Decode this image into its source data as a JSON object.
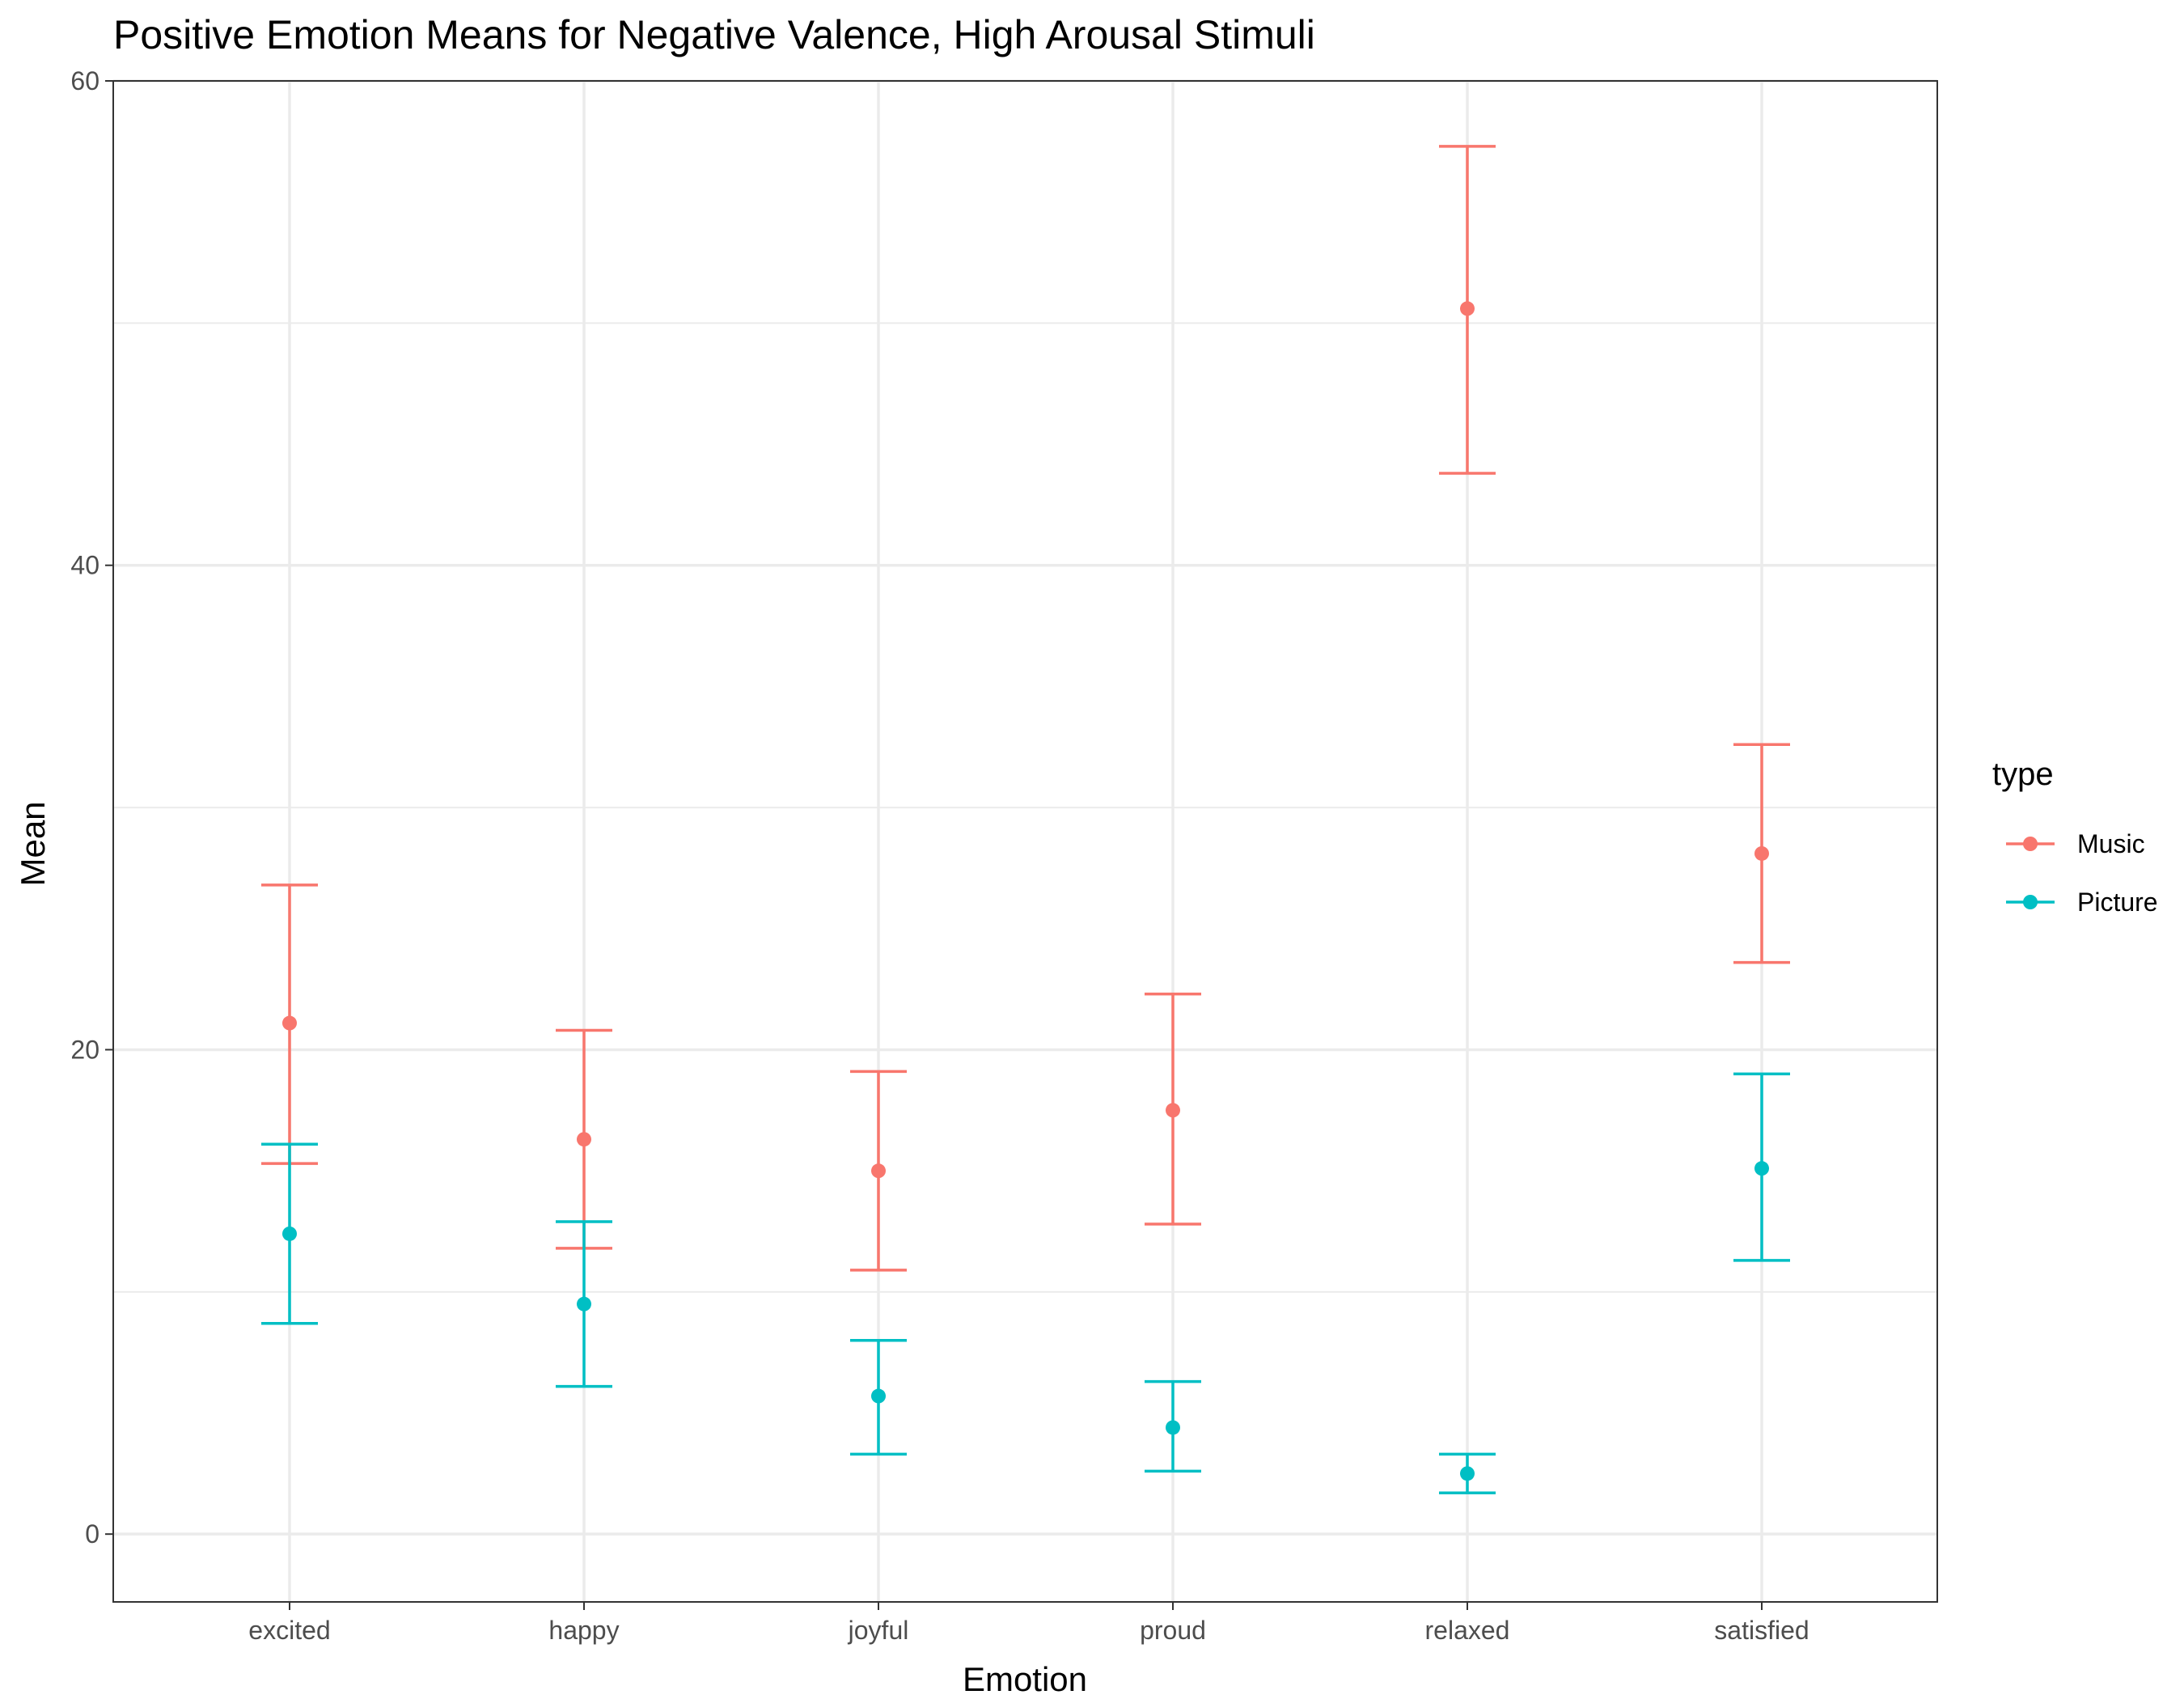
{
  "chart_data": {
    "type": "errorbar",
    "title": "Positive Emotion Means for Negative Valence, High Arousal Stimuli",
    "xlabel": "Emotion",
    "ylabel": "Mean",
    "categories": [
      "excited",
      "happy",
      "joyful",
      "proud",
      "relaxed",
      "satisfied"
    ],
    "ylim": [
      -2.8,
      60
    ],
    "yticks": [
      0,
      20,
      40,
      60
    ],
    "grid": true,
    "legend": {
      "title": "type",
      "placement": "right"
    },
    "series": [
      {
        "name": "Music",
        "color": "#F8766D",
        "mean": [
          21.1,
          16.3,
          15.0,
          17.5,
          50.6,
          28.1
        ],
        "lower": [
          15.3,
          11.8,
          10.9,
          12.8,
          43.8,
          23.6
        ],
        "upper": [
          26.8,
          20.8,
          19.1,
          22.3,
          57.3,
          32.6
        ]
      },
      {
        "name": "Picture",
        "color": "#00BFC4",
        "mean": [
          12.4,
          9.5,
          5.7,
          4.4,
          2.5,
          15.1
        ],
        "lower": [
          8.7,
          6.1,
          3.3,
          2.6,
          1.7,
          11.3
        ],
        "upper": [
          16.1,
          12.9,
          8.0,
          6.3,
          3.3,
          19.0
        ]
      }
    ]
  }
}
